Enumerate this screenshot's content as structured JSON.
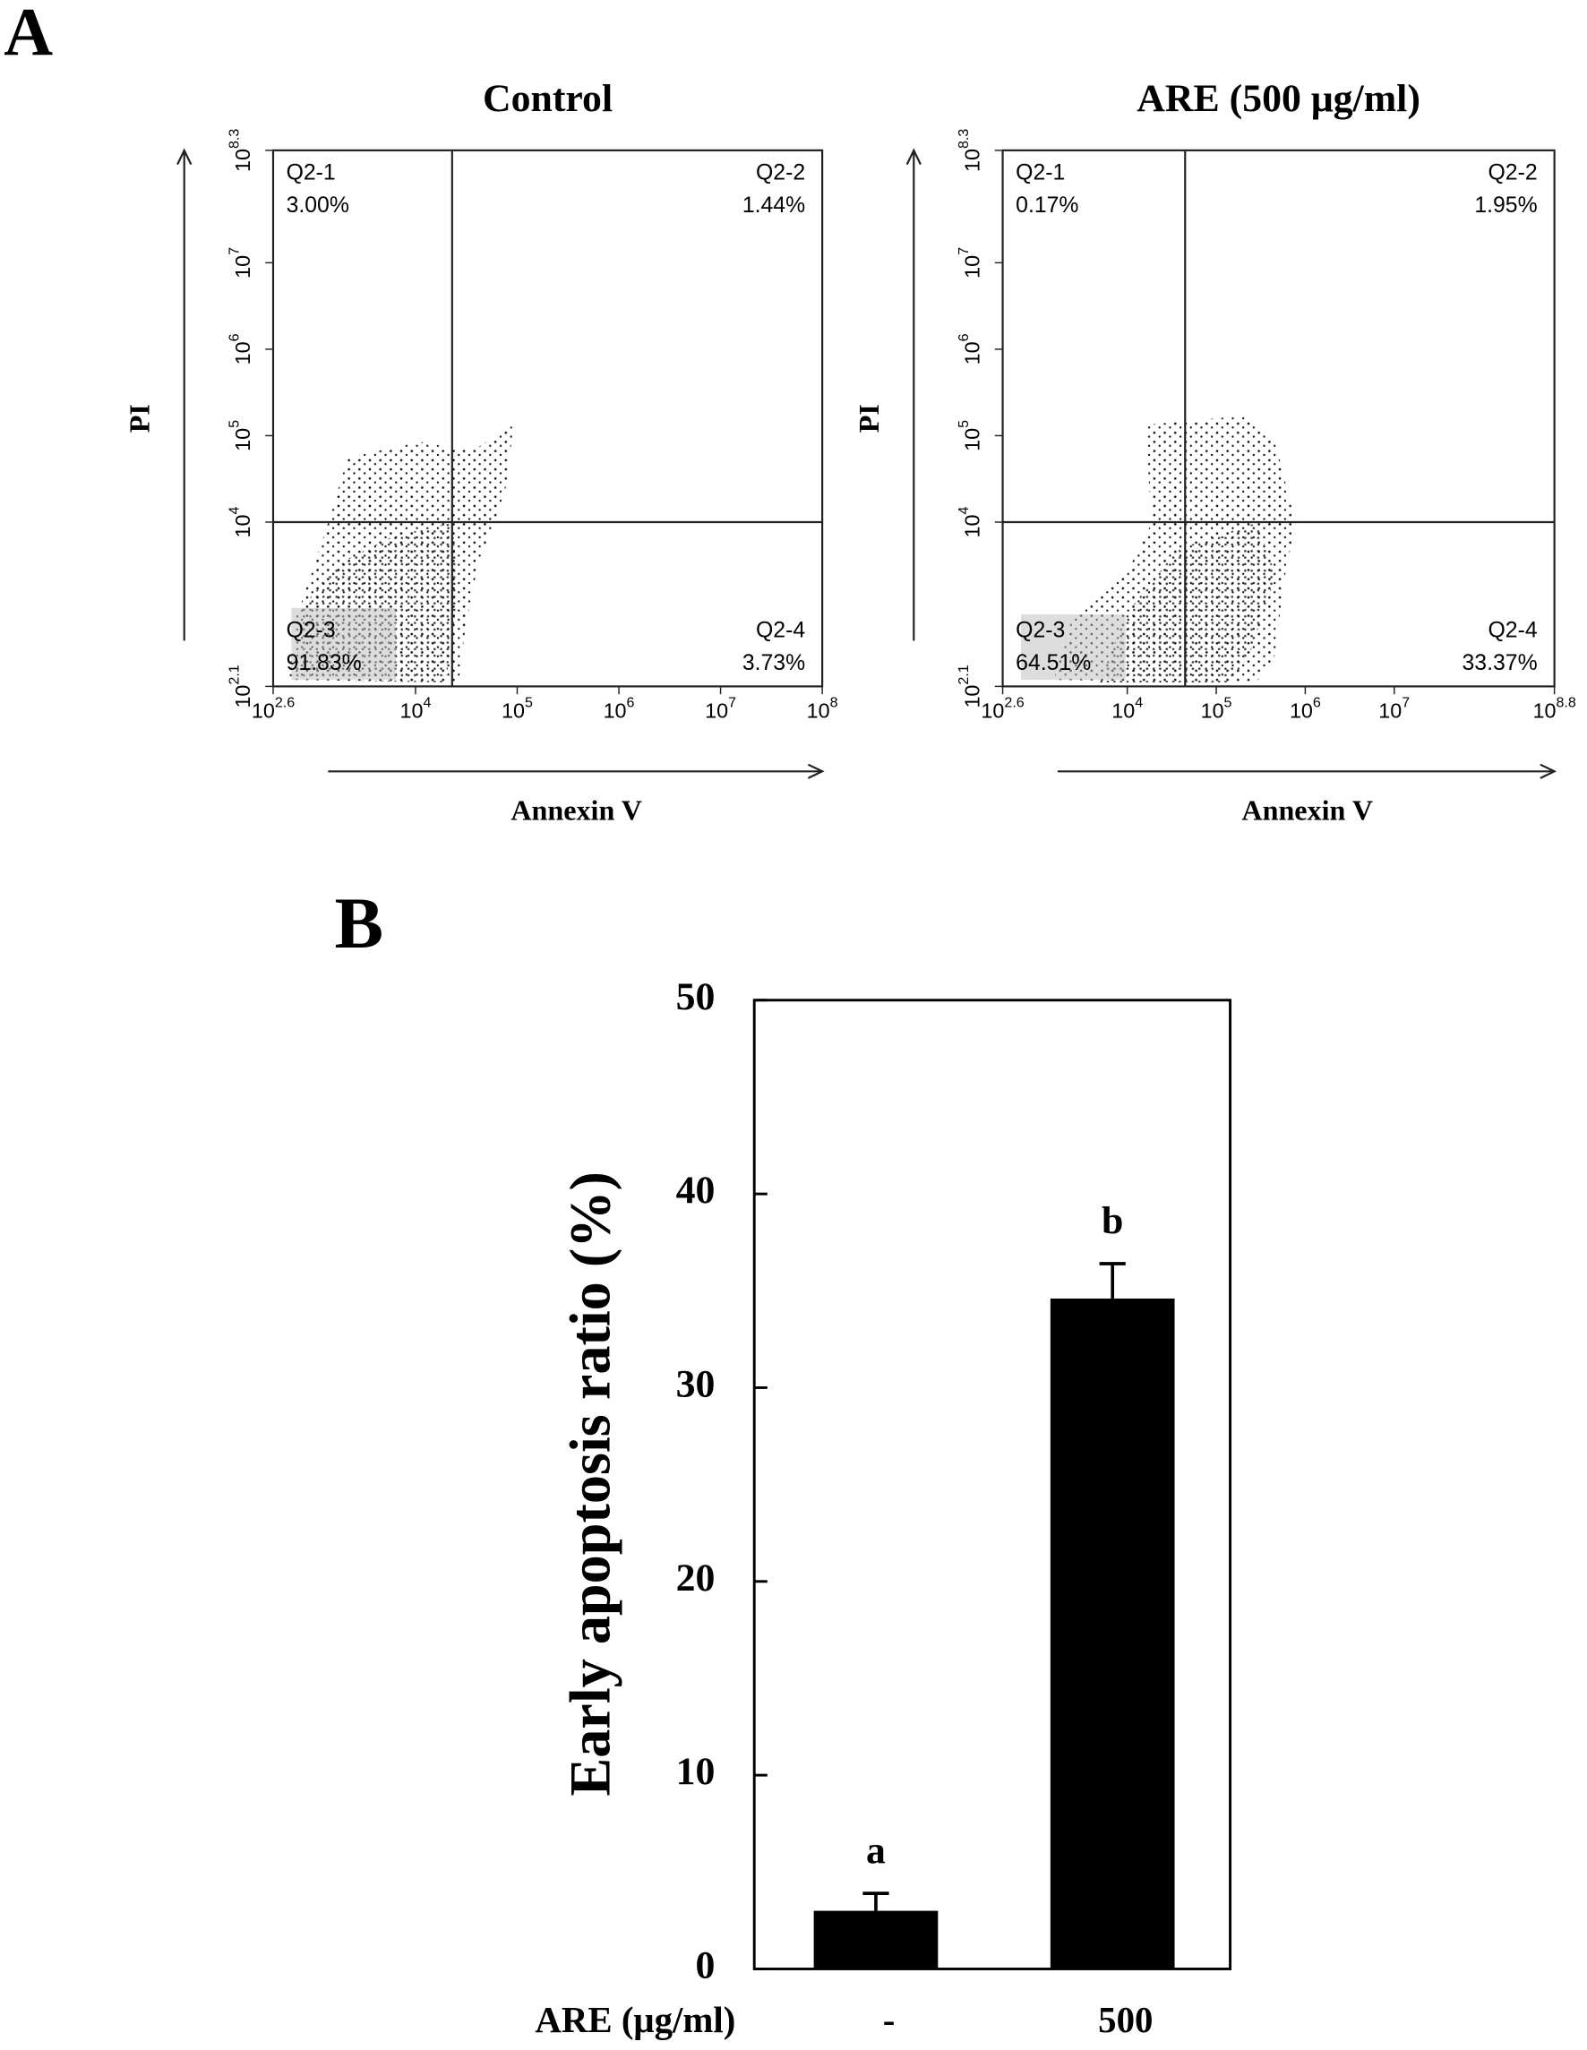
{
  "panel_labels": [
    "A",
    "B"
  ],
  "chart_data": [
    {
      "type": "quadrant",
      "title": "Control",
      "xlabel": "Annexin V",
      "ylabel": "PI",
      "log_base": "10",
      "xlim": [
        2.6,
        8
      ],
      "xticks": [
        2.6,
        4,
        5,
        6,
        7,
        8
      ],
      "ylim": [
        2.1,
        8.3
      ],
      "yticks": [
        2.1,
        4,
        5,
        6,
        7,
        8.3
      ],
      "gate": {
        "x": 4.36,
        "y": 4
      },
      "quadrants": {
        "names": [
          "Q2-1",
          "Q2-2",
          "Q2-3",
          "Q2-4"
        ],
        "values": [
          3.0,
          1.44,
          91.83,
          3.73
        ],
        "value_labels": [
          "3.00%",
          "1.44%",
          "91.83%",
          "3.73%"
        ]
      }
    },
    {
      "type": "quadrant",
      "title": "ARE (500 μg/ml)",
      "xlabel": "Annexin V",
      "ylabel": "PI",
      "log_base": "10",
      "xlim": [
        2.6,
        8.8
      ],
      "xticks": [
        2.6,
        4,
        5,
        6,
        7,
        8.8
      ],
      "ylim": [
        2.1,
        8.3
      ],
      "yticks": [
        2.1,
        4,
        5,
        6,
        7,
        8.3
      ],
      "gate": {
        "x": 4.65,
        "y": 4
      },
      "quadrants": {
        "names": [
          "Q2-1",
          "Q2-2",
          "Q2-3",
          "Q2-4"
        ],
        "values": [
          0.17,
          1.95,
          64.51,
          33.37
        ],
        "value_labels": [
          "0.17%",
          "1.95%",
          "64.51%",
          "33.37%"
        ]
      }
    },
    {
      "type": "bar",
      "ylabel": "Early apoptosis ratio (%)",
      "xlabel": "ARE (μg/ml)",
      "categories": [
        "-",
        "500"
      ],
      "values": [
        3.0,
        34.6
      ],
      "errors": [
        0.9,
        1.8
      ],
      "annotations": [
        "a",
        "b"
      ],
      "color": "#000000",
      "ylim": [
        0,
        50
      ],
      "yticks": [
        0,
        10,
        20,
        30,
        40,
        50
      ]
    }
  ]
}
